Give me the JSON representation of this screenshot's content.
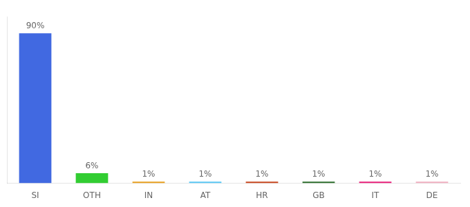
{
  "chart_data": {
    "type": "bar",
    "categories": [
      "SI",
      "OTH",
      "IN",
      "AT",
      "HR",
      "GB",
      "IT",
      "DE"
    ],
    "values": [
      90,
      6,
      1,
      1,
      1,
      1,
      1,
      1
    ],
    "value_labels": [
      "90%",
      "6%",
      "1%",
      "1%",
      "1%",
      "1%",
      "1%",
      "1%"
    ],
    "colors": [
      "#4169e1",
      "#32cd32",
      "#e8a020",
      "#5bc8f5",
      "#c84820",
      "#2d6e2d",
      "#e8207a",
      "#f0b0c0"
    ],
    "ylim": [
      0,
      100
    ],
    "data_labels": true,
    "tick_labels": "x",
    "grid": false
  }
}
